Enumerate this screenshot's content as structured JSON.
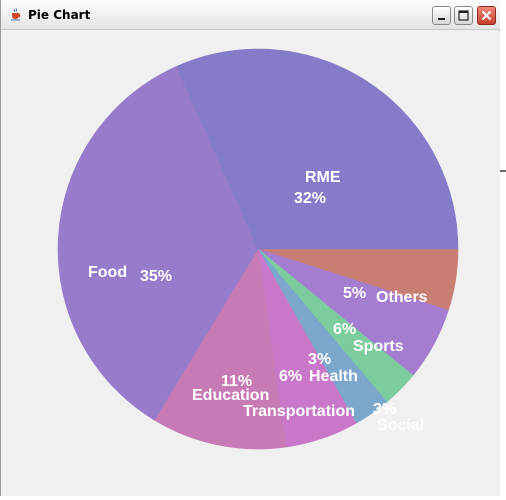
{
  "window": {
    "title": "Pie Chart",
    "icon": "java-cup-icon",
    "buttons": {
      "minimize": "minimize-icon",
      "maximize": "maximize-icon",
      "close": "close-icon"
    }
  },
  "colors": {
    "titlebar": "#eaeaea",
    "background": "#f0f0f0",
    "close_button": "#d9533f"
  },
  "chart_data": {
    "type": "pie",
    "title": "",
    "start_angle_deg": 0,
    "direction": "clockwise-from-right",
    "slices": [
      {
        "label": "Others",
        "percent_label": "5%",
        "value": 5,
        "color": "#c97e74"
      },
      {
        "label": "Sports",
        "percent_label": "6%",
        "value": 6,
        "color": "#a47cd0"
      },
      {
        "label": "Health",
        "percent_label": "3%",
        "value": 3,
        "color": "#7ccc9e"
      },
      {
        "label": "Social",
        "percent_label": "3%",
        "value": 3,
        "color": "#7aa7cb"
      },
      {
        "label": "Transportation",
        "percent_label": "6%",
        "value": 6,
        "color": "#c978c9"
      },
      {
        "label": "Education",
        "percent_label": "11%",
        "value": 11,
        "color": "#c77bb5"
      },
      {
        "label": "Food",
        "percent_label": "35%",
        "value": 35,
        "color": "#977ccb"
      },
      {
        "label": "RME",
        "percent_label": "32%",
        "value": 32,
        "color": "#857cc9"
      }
    ]
  }
}
